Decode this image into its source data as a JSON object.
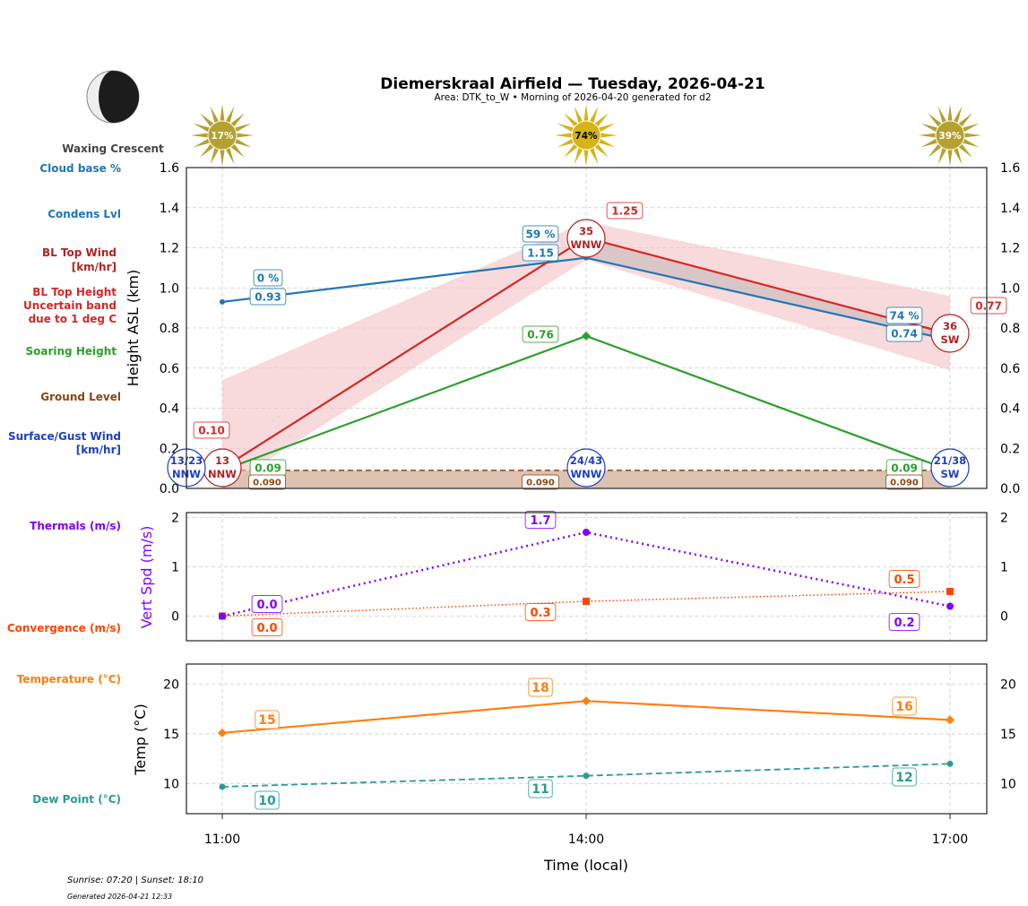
{
  "header": {
    "title": "Diemerskraal Airfield — Tuesday, 2026-04-21",
    "subtitle": "Area: DTK_to_W • Morning of 2026-04-20 generated for d2",
    "moon_phase": "Waxing Crescent",
    "sun_info": "Sunrise: 07:20 | Sunset: 18:10",
    "generated": "Generated 2026-04-21 12:33"
  },
  "legend_labels": {
    "cloud_base": "Cloud base %",
    "condens": "Condens Lvl",
    "bl_wind_1": "BL Top Wind",
    "bl_wind_2": "[km/hr]",
    "bl_top_1": "BL Top Height",
    "bl_top_2": "Uncertain band",
    "bl_top_3": "due to 1 deg C",
    "soaring": "Soaring Height",
    "ground": "Ground Level",
    "surface_1": "Surface/Gust Wind",
    "surface_2": "[km/hr]",
    "thermals": "Thermals (m/s)",
    "convergence": "Convergence (m/s)",
    "temperature": "Temperature (°C)",
    "dewpoint": "Dew Point (°C)"
  },
  "colors": {
    "cloud": "#1f77b4",
    "bl_top": "#d62728",
    "bl_wind": "#b22222",
    "band": "#f4c2c4",
    "soaring": "#2ca02c",
    "ground": "#8b4513",
    "ground_fill": "#dcc2b0",
    "surface": "#1f3fbf",
    "thermals": "#8000ff",
    "convergence": "#ff4500",
    "temperature": "#ff7f0e",
    "dewpoint": "#2a9d8f",
    "sun": "#c9a818"
  },
  "chart_data": [
    {
      "type": "line",
      "x": [
        "11:00",
        "14:00",
        "17:00"
      ],
      "ylabel": "Height ASL (km)",
      "ylim": [
        0,
        1.6
      ],
      "yticks": [
        "0.0",
        "0.2",
        "0.4",
        "0.6",
        "0.8",
        "1.0",
        "1.2",
        "1.4",
        "1.6"
      ],
      "grid": true,
      "sun_cover_pct": [
        "17%",
        "74%",
        "39%"
      ],
      "sun_strength": [
        0.17,
        0.74,
        0.39
      ],
      "cloud_base_pct": [
        "0 %",
        "59 %",
        "74 %"
      ],
      "condens_level": [
        0.93,
        1.15,
        0.74
      ],
      "bl_top": [
        0.1,
        1.25,
        0.77
      ],
      "bl_band_low": [
        0.0,
        1.14,
        0.59
      ],
      "bl_band_high": [
        0.54,
        1.33,
        0.96
      ],
      "soaring_height": [
        0.09,
        0.76,
        0.09
      ],
      "ground_level": 0.09,
      "bl_top_wind": [
        {
          "speed": "13",
          "dir": "NNW"
        },
        {
          "speed": "35",
          "dir": "WNW"
        },
        {
          "speed": "36",
          "dir": "SW"
        }
      ],
      "surface_wind": [
        {
          "speed": "13/23",
          "dir": "NNW"
        },
        {
          "speed": "24/43",
          "dir": "WNW"
        },
        {
          "speed": "21/38",
          "dir": "SW"
        }
      ]
    },
    {
      "type": "line",
      "x": [
        "11:00",
        "14:00",
        "17:00"
      ],
      "ylabel": "Vert Spd (m/s)",
      "ylim": [
        -0.5,
        2.1
      ],
      "yticks": [
        "0",
        "1",
        "2"
      ],
      "series": [
        {
          "name": "Thermals (m/s)",
          "values": [
            0.0,
            1.7,
            0.2
          ]
        },
        {
          "name": "Convergence (m/s)",
          "values": [
            0.0,
            0.3,
            0.5
          ]
        }
      ]
    },
    {
      "type": "line",
      "x": [
        "11:00",
        "14:00",
        "17:00"
      ],
      "xlabel": "Time (local)",
      "ylabel": "Temp (°C)",
      "ylim": [
        7,
        22
      ],
      "yticks": [
        "10",
        "15",
        "20"
      ],
      "series": [
        {
          "name": "Temperature (°C)",
          "values": [
            15.1,
            18.3,
            16.4
          ],
          "labels": [
            "15",
            "18",
            "16"
          ]
        },
        {
          "name": "Dew Point (°C)",
          "values": [
            9.7,
            10.8,
            12.0
          ],
          "labels": [
            "10",
            "11",
            "12"
          ]
        }
      ]
    }
  ]
}
